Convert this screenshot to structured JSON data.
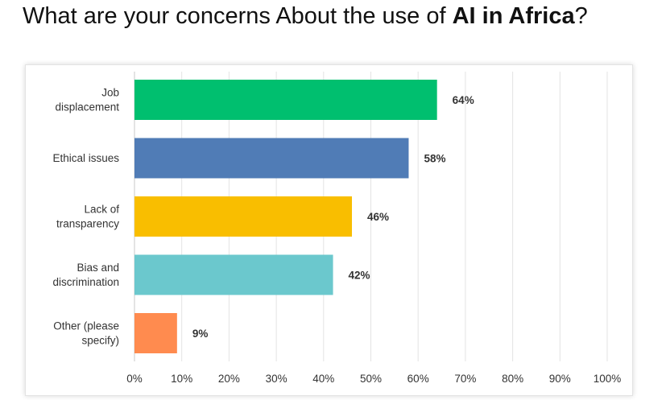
{
  "title": {
    "prefix": "What are your concerns About the use of ",
    "bold": "AI in Africa",
    "suffix": "?"
  },
  "chart_data": {
    "type": "bar",
    "orientation": "horizontal",
    "categories": [
      [
        "Job",
        "displacement"
      ],
      [
        "Ethical issues"
      ],
      [
        "Lack of",
        "transparency"
      ],
      [
        "Bias and",
        "discrimination"
      ],
      [
        "Other (please",
        "specify)"
      ]
    ],
    "values": [
      64,
      58,
      46,
      42,
      9
    ],
    "data_labels": [
      "64%",
      "58%",
      "46%",
      "42%",
      "9%"
    ],
    "colors": [
      "#00bf6f",
      "#507cb6",
      "#f9be00",
      "#6bc8cd",
      "#ff8b4f"
    ],
    "xlim": [
      0,
      100
    ],
    "xticks": [
      "0%",
      "10%",
      "20%",
      "30%",
      "40%",
      "50%",
      "60%",
      "70%",
      "80%",
      "90%",
      "100%"
    ],
    "grid": true,
    "xlabel": "",
    "ylabel": ""
  }
}
